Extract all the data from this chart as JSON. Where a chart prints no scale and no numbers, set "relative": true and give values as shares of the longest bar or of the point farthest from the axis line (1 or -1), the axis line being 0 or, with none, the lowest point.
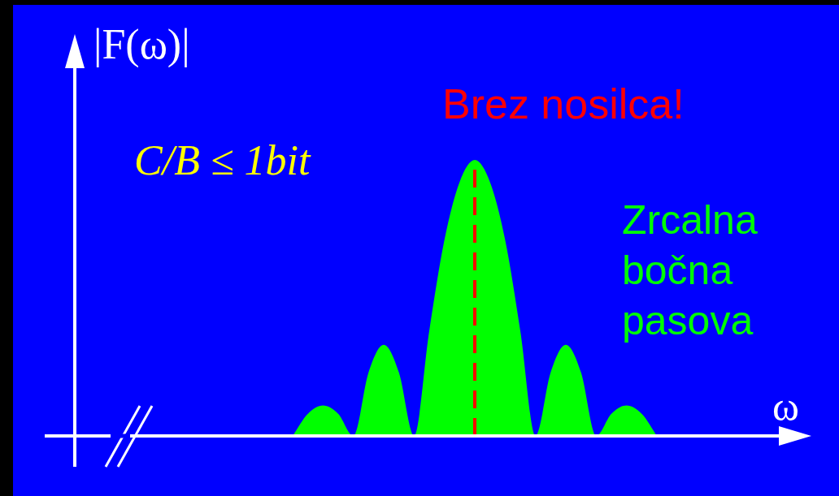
{
  "chart_data": {
    "type": "area",
    "relative": true,
    "xlabel": "ω",
    "ylabel": "|F(ω)|",
    "categories": [
      null,
      null,
      null,
      null,
      null,
      null,
      null,
      null,
      null,
      null,
      null,
      null,
      null,
      null,
      null,
      null,
      null,
      null,
      null,
      null,
      null,
      null,
      null,
      null,
      null
    ],
    "series": [
      {
        "color": "#00ff00",
        "values": [
          0,
          0.08,
          0.11,
          0.08,
          0,
          0.23,
          0.33,
          0.23,
          0,
          0.38,
          0.71,
          0.92,
          1,
          0.92,
          0.71,
          0.38,
          0,
          0.23,
          0.33,
          0.23,
          0,
          0.08,
          0.11,
          0.08,
          0
        ]
      }
    ],
    "annotations": [
      "C/B ≤ 1bit",
      "Zrcalna bočna pasova",
      "Brez nosilca!"
    ]
  }
}
